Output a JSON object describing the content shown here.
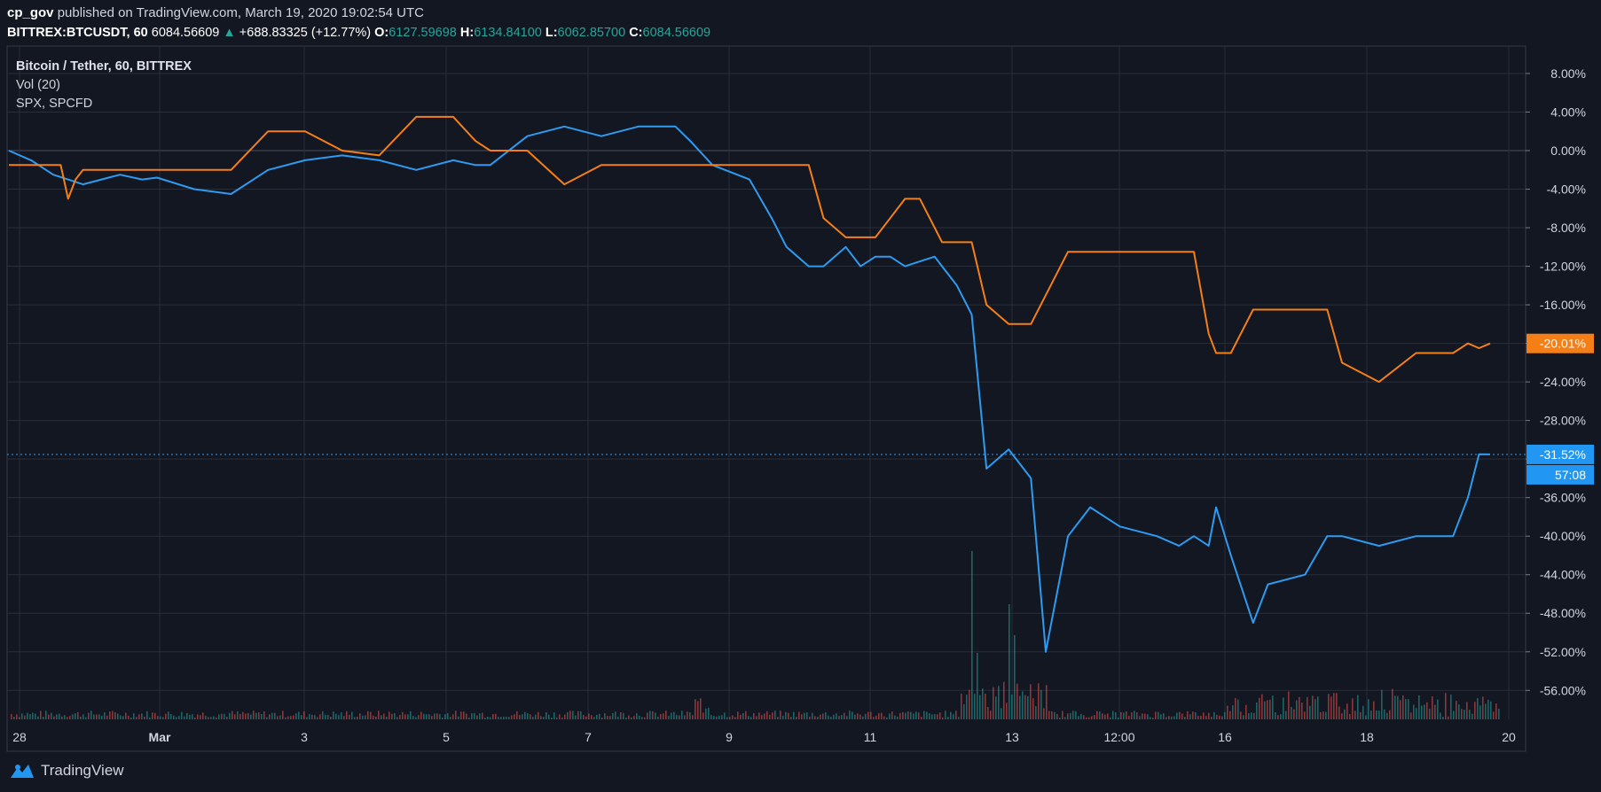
{
  "header": {
    "publisher": "cp_gov",
    "published_text": "published on TradingView.com, March 19, 2020 19:02:54 UTC",
    "symbol": "BITTREX:BTCUSDT, 60",
    "last": "6084.56609",
    "change_arrow": "▲",
    "change": "+688.83325 (+12.77%)",
    "o_label": "O:",
    "o": "6127.59698",
    "h_label": "H:",
    "h": "6134.84100",
    "l_label": "L:",
    "l": "6062.85700",
    "c_label": "C:",
    "c": "6084.56609"
  },
  "legend": {
    "main": "Bitcoin / Tether, 60, BITTREX",
    "vol": "Vol (20)",
    "compare": "SPX, SPCFD"
  },
  "footer": {
    "brand": "TradingView",
    "logo_icon": "tradingview-logo-icon"
  },
  "colors": {
    "btc": "#2e9bf0",
    "spx": "#f57f17",
    "background": "#131722",
    "grid": "#2a2e39",
    "vol_up": "#26a69a",
    "vol_down": "#ef5350"
  },
  "chart_data": {
    "type": "line",
    "y_unit": "%",
    "ylim": [
      -58,
      10
    ],
    "y_ticks": [
      "8.00%",
      "4.00%",
      "0.00%",
      "-4.00%",
      "-8.00%",
      "-12.00%",
      "-16.00%",
      "-20.00%",
      "-24.00%",
      "-28.00%",
      "-32.00%",
      "-36.00%",
      "-40.00%",
      "-44.00%",
      "-48.00%",
      "-52.00%",
      "-56.00%"
    ],
    "x_ticks": [
      "28",
      "Mar",
      "3",
      "5",
      "7",
      "9",
      "11",
      "13",
      "12:00",
      "16",
      "18",
      "20"
    ],
    "grid": true,
    "series": [
      {
        "name": "Bitcoin / Tether, 60, BITTREX",
        "last_label": "-31.52%",
        "countdown": "57:08",
        "x": [
          0,
          0.3,
          0.6,
          1,
          1.5,
          1.8,
          2,
          2.5,
          3,
          3.5,
          4,
          4.5,
          5,
          5.5,
          6,
          6.3,
          6.5,
          7,
          7.5,
          8,
          8.5,
          9,
          9.2,
          9.5,
          10,
          10.3,
          10.5,
          10.8,
          11,
          11.3,
          11.5,
          11.7,
          11.9,
          12.1,
          12.3,
          12.5,
          12.6,
          12.7,
          12.8,
          13,
          13.2,
          13.5,
          13.8,
          14,
          14.3,
          14.6,
          15,
          15.5,
          15.8,
          16,
          16.2,
          16.3,
          16.5,
          16.8,
          17,
          17.5,
          17.8,
          18,
          18.5,
          19,
          19.3,
          19.5,
          19.7,
          19.85,
          20
        ],
        "y": [
          0,
          -1,
          -2.5,
          -3.5,
          -2.5,
          -3,
          -2.8,
          -4,
          -4.5,
          -2,
          -1,
          -0.5,
          -1,
          -2,
          -1,
          -1.5,
          -1.5,
          1.5,
          2.5,
          1.5,
          2.5,
          2.5,
          1,
          -1.5,
          -3,
          -7,
          -10,
          -12,
          -12,
          -10,
          -12,
          -11,
          -11,
          -12,
          -11.5,
          -11,
          -12,
          -13,
          -14,
          -17,
          -33,
          -31,
          -34,
          -52,
          -40,
          -37,
          -39,
          -40,
          -41,
          -40,
          -41,
          -37,
          -42,
          -49,
          -45,
          -44,
          -40,
          -40,
          -41,
          -40,
          -40,
          -40,
          -36,
          -31.5,
          -31.52
        ]
      },
      {
        "name": "SPX, SPCFD",
        "last_label": "-20.01%",
        "x": [
          0,
          0.7,
          0.8,
          0.9,
          1,
          1.3,
          1.5,
          2,
          2.5,
          3,
          3.5,
          4,
          4.5,
          5,
          5.5,
          6,
          6.3,
          6.5,
          7,
          7.5,
          8,
          8.5,
          9,
          9.2,
          9.5,
          10,
          10.3,
          10.5,
          10.8,
          11,
          11.3,
          11.5,
          11.7,
          11.9,
          12.1,
          12.3,
          12.5,
          12.6,
          12.7,
          12.8,
          13,
          13.2,
          13.5,
          13.8,
          14,
          14.3,
          14.6,
          15,
          15.5,
          15.8,
          16,
          16.2,
          16.3,
          16.5,
          16.8,
          17,
          17.5,
          17.8,
          18,
          18.5,
          19,
          19.3,
          19.5,
          19.7,
          19.85,
          20
        ],
        "y": [
          -1.5,
          -1.5,
          -5,
          -3,
          -2,
          -2,
          -2,
          -2,
          -2,
          -2,
          2,
          2,
          0,
          -0.5,
          3.5,
          3.5,
          1,
          0,
          0,
          -3.5,
          -1.5,
          -1.5,
          -1.5,
          -1.5,
          -1.5,
          -1.5,
          -1.5,
          -1.5,
          -1.5,
          -7,
          -9,
          -9,
          -9,
          -7,
          -5,
          -5,
          -8,
          -9.5,
          -9.5,
          -9.5,
          -9.5,
          -16,
          -18,
          -18,
          -15,
          -10.5,
          -10.5,
          -10.5,
          -10.5,
          -10.5,
          -10.5,
          -19,
          -21,
          -21,
          -16.5,
          -16.5,
          -16.5,
          -16.5,
          -22,
          -24,
          -21,
          -21,
          -21,
          -20,
          -20.5,
          -20.01
        ]
      }
    ]
  }
}
